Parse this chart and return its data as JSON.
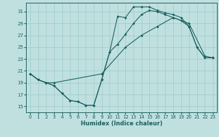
{
  "title": "",
  "xlabel": "Humidex (Indice chaleur)",
  "bg_color": "#c0e0e0",
  "grid_color": "#a0cccc",
  "line_color": "#1a6060",
  "xlim": [
    -0.5,
    23.5
  ],
  "ylim": [
    14.0,
    32.5
  ],
  "xticks": [
    0,
    1,
    2,
    3,
    4,
    5,
    6,
    7,
    8,
    9,
    10,
    11,
    12,
    13,
    14,
    15,
    16,
    17,
    18,
    19,
    20,
    21,
    22,
    23
  ],
  "yticks": [
    15,
    17,
    19,
    21,
    23,
    25,
    27,
    29,
    31
  ],
  "line1_x": [
    0,
    1,
    2,
    3,
    4,
    5,
    6,
    7,
    8,
    9,
    10,
    11,
    12,
    13,
    14,
    15,
    16,
    17,
    18,
    19,
    20,
    21,
    22,
    23
  ],
  "line1_y": [
    20.5,
    19.5,
    19.0,
    18.5,
    17.2,
    16.0,
    15.8,
    15.2,
    15.2,
    19.5,
    24.2,
    30.2,
    30.0,
    31.8,
    31.8,
    31.8,
    31.2,
    30.8,
    30.5,
    30.0,
    28.5,
    25.0,
    23.2,
    23.2
  ],
  "line2_x": [
    0,
    1,
    2,
    3,
    4,
    5,
    6,
    7,
    8,
    9,
    10,
    11,
    12,
    13,
    14,
    15,
    16,
    17,
    18,
    19,
    20,
    21,
    22,
    23
  ],
  "line2_y": [
    20.5,
    19.5,
    19.0,
    18.5,
    17.2,
    16.0,
    15.8,
    15.2,
    15.2,
    19.5,
    24.2,
    25.5,
    27.2,
    29.0,
    30.5,
    31.2,
    31.0,
    30.5,
    30.0,
    29.5,
    28.5,
    25.0,
    23.2,
    23.2
  ],
  "line3_x": [
    0,
    1,
    2,
    3,
    9,
    12,
    14,
    16,
    18,
    20,
    22,
    23
  ],
  "line3_y": [
    20.5,
    19.5,
    19.0,
    19.0,
    20.5,
    25.0,
    27.0,
    28.5,
    30.0,
    29.0,
    23.5,
    23.2
  ],
  "marker_size": 2.0,
  "line_width": 0.8,
  "tick_fontsize": 5,
  "xlabel_fontsize": 6
}
